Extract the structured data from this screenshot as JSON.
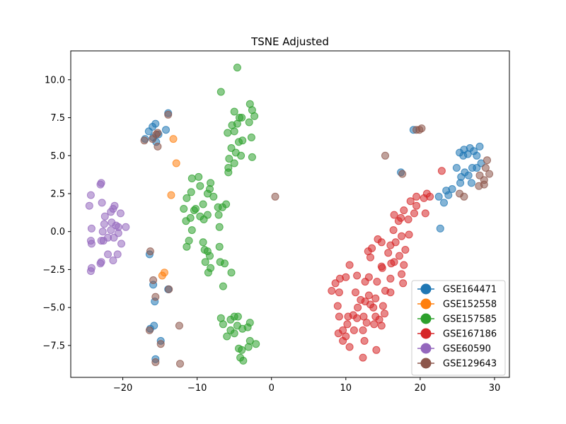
{
  "chart_data": {
    "type": "scatter",
    "title": "TSNE Adjusted",
    "xlabel": "",
    "ylabel": "",
    "xlim": [
      -27,
      32
    ],
    "ylim": [
      -9.6,
      11.9
    ],
    "xticks": [
      -20,
      -10,
      0,
      10,
      20,
      30
    ],
    "yticks": [
      -7.5,
      -5.0,
      -2.5,
      0.0,
      2.5,
      5.0,
      7.5,
      10.0
    ],
    "xtick_labels": [
      "−20",
      "−10",
      "0",
      "10",
      "20",
      "30"
    ],
    "ytick_labels": [
      "−7.5",
      "−5.0",
      "−2.5",
      "0.0",
      "2.5",
      "5.0",
      "7.5",
      "10.0"
    ],
    "grid": false,
    "legend_position": "lower-right",
    "series": [
      {
        "name": "GSE164471",
        "color": "#1f77b4",
        "points": [
          [
            -16.5,
            6.6
          ],
          [
            -16.0,
            6.9
          ],
          [
            -15.6,
            7.1
          ],
          [
            -15.2,
            6.4
          ],
          [
            -17.0,
            6.1
          ],
          [
            -15.9,
            6.2
          ],
          [
            -15.5,
            5.9
          ],
          [
            -14.2,
            6.7
          ],
          [
            -13.9,
            7.8
          ],
          [
            -16.4,
            -1.5
          ],
          [
            -15.9,
            -3.5
          ],
          [
            -15.7,
            -4.6
          ],
          [
            -16.3,
            -6.4
          ],
          [
            -15.8,
            -6.2
          ],
          [
            -15.6,
            -8.4
          ],
          [
            -14.9,
            -7.2
          ],
          [
            -13.9,
            -3.8
          ],
          [
            22.7,
            0.2
          ],
          [
            22.5,
            2.3
          ],
          [
            23.2,
            1.9
          ],
          [
            23.8,
            2.4
          ],
          [
            24.3,
            2.8
          ],
          [
            23.5,
            2.7
          ],
          [
            24.9,
            4.2
          ],
          [
            25.3,
            5.2
          ],
          [
            25.8,
            5.0
          ],
          [
            25.9,
            5.4
          ],
          [
            26.4,
            5.1
          ],
          [
            26.7,
            5.5
          ],
          [
            27.2,
            5.3
          ],
          [
            27.6,
            5.0
          ],
          [
            28.0,
            5.6
          ],
          [
            26.0,
            3.9
          ],
          [
            25.5,
            3.6
          ],
          [
            26.5,
            3.7
          ],
          [
            27.0,
            4.2
          ],
          [
            27.6,
            4.2
          ],
          [
            28.2,
            4.5
          ],
          [
            25.4,
            3.2
          ],
          [
            26.9,
            3.2
          ],
          [
            19.1,
            6.7
          ],
          [
            17.4,
            3.9
          ]
        ]
      },
      {
        "name": "GSE152558",
        "color": "#ff7f0e",
        "points": [
          [
            -13.2,
            6.1
          ],
          [
            -12.8,
            4.5
          ],
          [
            -13.5,
            2.4
          ],
          [
            -14.7,
            -2.9
          ],
          [
            -14.4,
            -2.7
          ]
        ]
      },
      {
        "name": "GSE157585",
        "color": "#2ca02c",
        "points": [
          [
            -4.6,
            10.8
          ],
          [
            -6.8,
            9.2
          ],
          [
            -2.9,
            8.4
          ],
          [
            -5.0,
            7.9
          ],
          [
            -2.6,
            8.0
          ],
          [
            -2.3,
            7.6
          ],
          [
            -4.3,
            7.5
          ],
          [
            -4.0,
            7.5
          ],
          [
            -5.3,
            7.0
          ],
          [
            -4.6,
            7.1
          ],
          [
            -3.0,
            7.2
          ],
          [
            -5.9,
            6.5
          ],
          [
            -5.0,
            6.6
          ],
          [
            -2.7,
            6.2
          ],
          [
            -4.4,
            5.9
          ],
          [
            -3.9,
            6.0
          ],
          [
            -5.4,
            5.5
          ],
          [
            -5.7,
            4.8
          ],
          [
            -4.8,
            5.2
          ],
          [
            -4.1,
            5.0
          ],
          [
            -2.6,
            4.9
          ],
          [
            -5.0,
            4.5
          ],
          [
            -5.8,
            4.2
          ],
          [
            -5.8,
            3.9
          ],
          [
            -9.8,
            3.6
          ],
          [
            -10.7,
            3.5
          ],
          [
            -9.6,
            3.0
          ],
          [
            -8.2,
            3.2
          ],
          [
            -8.3,
            2.8
          ],
          [
            -8.6,
            2.5
          ],
          [
            -10.8,
            2.6
          ],
          [
            -7.8,
            2.3
          ],
          [
            -11.4,
            2.2
          ],
          [
            -6.1,
            1.8
          ],
          [
            -6.6,
            1.6
          ],
          [
            -7.2,
            1.6
          ],
          [
            -11.8,
            1.5
          ],
          [
            -10.4,
            1.4
          ],
          [
            -10.2,
            1.5
          ],
          [
            -9.2,
            1.8
          ],
          [
            -8.6,
            1.1
          ],
          [
            -7.1,
            1.1
          ],
          [
            -9.6,
            1.0
          ],
          [
            -11.5,
            0.7
          ],
          [
            -9.1,
            0.8
          ],
          [
            -10.9,
            0.9
          ],
          [
            -7.0,
            0.3
          ],
          [
            -10.7,
            0.1
          ],
          [
            -11.1,
            -0.6
          ],
          [
            -11.4,
            -1.0
          ],
          [
            -9.2,
            -0.7
          ],
          [
            -9.0,
            -1.2
          ],
          [
            -8.6,
            -1.3
          ],
          [
            -8.3,
            -1.6
          ],
          [
            -7.0,
            -1.0
          ],
          [
            -8.9,
            -2.0
          ],
          [
            -6.9,
            -2.0
          ],
          [
            -8.5,
            -2.7
          ],
          [
            -8.2,
            -2.4
          ],
          [
            -6.3,
            -2.1
          ],
          [
            -5.4,
            -2.7
          ],
          [
            -6.5,
            -3.6
          ],
          [
            -6.8,
            -5.7
          ],
          [
            -5.0,
            -5.6
          ],
          [
            -4.5,
            -5.6
          ],
          [
            -6.5,
            -6.1
          ],
          [
            -5.5,
            -5.8
          ],
          [
            -2.9,
            -6.0
          ],
          [
            -4.6,
            -6.2
          ],
          [
            -3.9,
            -6.4
          ],
          [
            -3.2,
            -6.3
          ],
          [
            -5.5,
            -6.5
          ],
          [
            -5.0,
            -6.7
          ],
          [
            -6.0,
            -6.9
          ],
          [
            -2.9,
            -7.2
          ],
          [
            -2.1,
            -7.4
          ],
          [
            -4.4,
            -7.7
          ],
          [
            -4.0,
            -7.8
          ],
          [
            -3.1,
            -7.6
          ],
          [
            -4.2,
            -8.3
          ],
          [
            -3.8,
            -8.5
          ]
        ]
      },
      {
        "name": "GSE167186",
        "color": "#d62728",
        "points": [
          [
            22.9,
            4.0
          ],
          [
            20.9,
            2.5
          ],
          [
            21.3,
            2.3
          ],
          [
            20.5,
            2.2
          ],
          [
            19.5,
            2.3
          ],
          [
            18.7,
            2.0
          ],
          [
            19.5,
            1.7
          ],
          [
            17.8,
            1.4
          ],
          [
            16.5,
            1.1
          ],
          [
            17.4,
            0.9
          ],
          [
            18.4,
            0.8
          ],
          [
            17.1,
            0.7
          ],
          [
            20.7,
            1.2
          ],
          [
            19.2,
            1.2
          ],
          [
            16.4,
            0.1
          ],
          [
            17.5,
            -0.3
          ],
          [
            18.5,
            -0.2
          ],
          [
            14.3,
            -0.5
          ],
          [
            14.8,
            -0.7
          ],
          [
            16.0,
            -0.9
          ],
          [
            16.7,
            -0.7
          ],
          [
            13.0,
            -1.3
          ],
          [
            13.5,
            -1.1
          ],
          [
            15.7,
            -1.4
          ],
          [
            18.0,
            -1.2
          ],
          [
            13.3,
            -1.7
          ],
          [
            17.2,
            -1.6
          ],
          [
            16.5,
            -2.0
          ],
          [
            10.5,
            -2.2
          ],
          [
            14.8,
            -2.3
          ],
          [
            16.1,
            -2.1
          ],
          [
            17.8,
            -2.2
          ],
          [
            14.9,
            -2.4
          ],
          [
            17.5,
            -2.8
          ],
          [
            9.2,
            -3.1
          ],
          [
            8.6,
            -3.4
          ],
          [
            10.0,
            -3.0
          ],
          [
            11.5,
            -2.9
          ],
          [
            12.6,
            -3.3
          ],
          [
            13.1,
            -3.0
          ],
          [
            14.2,
            -3.3
          ],
          [
            16.0,
            -3.1
          ],
          [
            17.7,
            -3.4
          ],
          [
            8.1,
            -3.9
          ],
          [
            9.1,
            -4.0
          ],
          [
            11.3,
            -4.0
          ],
          [
            15.3,
            -3.9
          ],
          [
            16.0,
            -4.0
          ],
          [
            12.6,
            -4.6
          ],
          [
            12.0,
            -4.5
          ],
          [
            13.1,
            -4.2
          ],
          [
            14.0,
            -4.4
          ],
          [
            8.9,
            -4.9
          ],
          [
            11.6,
            -5.0
          ],
          [
            13.3,
            -4.8
          ],
          [
            13.7,
            -5.0
          ],
          [
            15.0,
            -4.9
          ],
          [
            9.1,
            -5.6
          ],
          [
            10.3,
            -5.6
          ],
          [
            11.0,
            -5.5
          ],
          [
            11.5,
            -5.7
          ],
          [
            12.4,
            -5.6
          ],
          [
            14.0,
            -5.6
          ],
          [
            14.5,
            -5.8
          ],
          [
            15.2,
            -5.4
          ],
          [
            10.2,
            -6.1
          ],
          [
            12.8,
            -6.0
          ],
          [
            13.8,
            -6.1
          ],
          [
            9.0,
            -6.7
          ],
          [
            9.6,
            -6.5
          ],
          [
            10.0,
            -6.9
          ],
          [
            11.1,
            -6.5
          ],
          [
            12.3,
            -6.5
          ],
          [
            14.8,
            -6.2
          ],
          [
            9.6,
            -7.2
          ],
          [
            12.5,
            -7.2
          ],
          [
            10.5,
            -7.6
          ],
          [
            14.1,
            -7.8
          ],
          [
            12.3,
            -8.3
          ]
        ]
      },
      {
        "name": "GSE60590",
        "color": "#9467bd",
        "points": [
          [
            -22.9,
            3.2
          ],
          [
            -23.0,
            3.1
          ],
          [
            -24.3,
            2.4
          ],
          [
            -22.8,
            1.9
          ],
          [
            -21.1,
            1.7
          ],
          [
            -21.3,
            1.5
          ],
          [
            -24.5,
            1.7
          ],
          [
            -21.6,
            1.3
          ],
          [
            -20.3,
            1.2
          ],
          [
            -22.4,
            1.0
          ],
          [
            -21.5,
            0.6
          ],
          [
            -22.5,
            0.5
          ],
          [
            -20.9,
            0.4
          ],
          [
            -20.6,
            0.3
          ],
          [
            -19.6,
            0.3
          ],
          [
            -24.2,
            0.2
          ],
          [
            -22.7,
            0.0
          ],
          [
            -21.6,
            0.1
          ],
          [
            -20.6,
            -0.1
          ],
          [
            -21.2,
            -0.4
          ],
          [
            -22.0,
            -0.4
          ],
          [
            -22.9,
            -0.6
          ],
          [
            -22.6,
            -0.6
          ],
          [
            -24.3,
            -0.6
          ],
          [
            -24.2,
            -0.8
          ],
          [
            -20.2,
            -0.8
          ],
          [
            -22.0,
            -1.5
          ],
          [
            -20.7,
            -1.5
          ],
          [
            -21.3,
            -1.9
          ],
          [
            -22.9,
            -2.0
          ],
          [
            -23.0,
            -2.1
          ],
          [
            -24.2,
            -2.4
          ],
          [
            -24.3,
            -2.6
          ]
        ]
      },
      {
        "name": "GSE129643",
        "color": "#8c564b",
        "points": [
          [
            -13.9,
            7.7
          ],
          [
            -15.3,
            6.5
          ],
          [
            -15.5,
            6.4
          ],
          [
            -16.0,
            6.1
          ],
          [
            -17.1,
            6.0
          ],
          [
            -15.3,
            5.6
          ],
          [
            -16.3,
            -1.3
          ],
          [
            -15.9,
            -3.2
          ],
          [
            -15.6,
            -4.3
          ],
          [
            -13.8,
            -3.8
          ],
          [
            -16.4,
            -6.5
          ],
          [
            -12.4,
            -6.2
          ],
          [
            -14.9,
            -7.4
          ],
          [
            -15.6,
            -8.6
          ],
          [
            -12.3,
            -8.7
          ],
          [
            0.5,
            2.3
          ],
          [
            15.3,
            5.0
          ],
          [
            17.6,
            3.8
          ],
          [
            19.5,
            6.7
          ],
          [
            20.2,
            6.8
          ],
          [
            19.9,
            6.7
          ],
          [
            25.3,
            2.5
          ],
          [
            25.9,
            2.3
          ],
          [
            28.0,
            3.7
          ],
          [
            28.6,
            3.4
          ],
          [
            29.3,
            3.8
          ],
          [
            28.8,
            4.2
          ],
          [
            29.0,
            4.7
          ],
          [
            27.9,
            3.0
          ],
          [
            28.6,
            3.1
          ]
        ]
      }
    ]
  }
}
